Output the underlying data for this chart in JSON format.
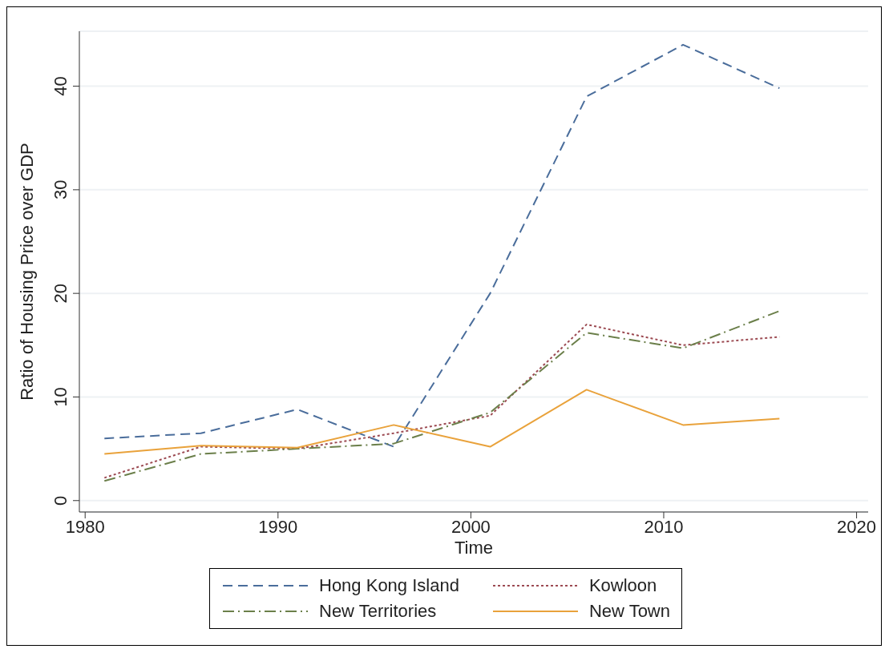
{
  "chart_data": {
    "type": "line",
    "xlabel": "Time",
    "ylabel": "Ratio of Housing Price over GDP",
    "x": [
      1981,
      1986,
      1991,
      1996,
      2001,
      2006,
      2011,
      2016
    ],
    "series": [
      {
        "name": "Hong Kong Island",
        "color": "#4a6d9b",
        "line_style": "dashed",
        "values": [
          6.0,
          6.5,
          8.8,
          5.2,
          20.0,
          39.0,
          44.0,
          39.8
        ]
      },
      {
        "name": "Kowloon",
        "color": "#9c4a52",
        "line_style": "dotted",
        "values": [
          2.2,
          5.2,
          5.0,
          6.5,
          8.2,
          17.0,
          15.0,
          15.8
        ]
      },
      {
        "name": "New Territories",
        "color": "#6b7f4a",
        "line_style": "dashdot",
        "values": [
          1.9,
          4.5,
          5.0,
          5.5,
          8.5,
          16.2,
          14.7,
          18.3
        ]
      },
      {
        "name": "New Town",
        "color": "#e9a23b",
        "line_style": "solid",
        "values": [
          4.5,
          5.3,
          5.1,
          7.3,
          5.2,
          10.7,
          7.3,
          7.9
        ]
      }
    ],
    "xlim": [
      1979.7,
      2020.6
    ],
    "xticks": [
      1980,
      1990,
      2000,
      2010,
      2020
    ],
    "ylim": [
      -1.1,
      45.3
    ],
    "yticks": [
      0,
      10,
      20,
      30,
      40
    ],
    "grid": "y",
    "legend": "bottom",
    "marker": "none"
  }
}
